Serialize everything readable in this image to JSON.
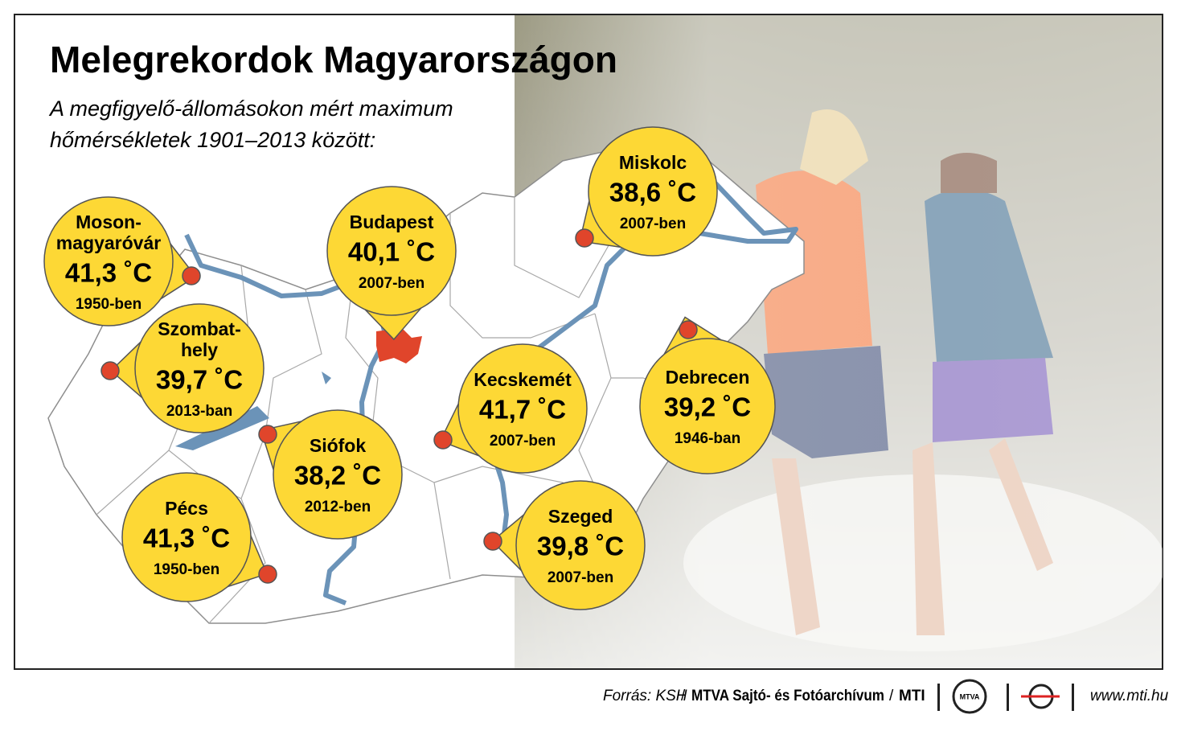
{
  "title": "Melegrekordok Magyarországon",
  "subtitle": [
    "A megfigyelő-állomásokon mért maximum",
    "hőmérsékletek 1901–2013 között:"
  ],
  "cities": [
    {
      "name": [
        "Moson-",
        "magyaróvár"
      ],
      "temperature": "41,3 ˚C",
      "year": "1950-ben"
    },
    {
      "name": [
        "Szombat-",
        "hely"
      ],
      "temperature": "39,7 ˚C",
      "year": "2013-ban"
    },
    {
      "name": [
        "Siófok"
      ],
      "temperature": "38,2 ˚C",
      "year": "2012-ben"
    },
    {
      "name": [
        "Pécs"
      ],
      "temperature": "41,3 ˚C",
      "year": "1950-ben"
    },
    {
      "name": [
        "Budapest"
      ],
      "temperature": "40,1 ˚C",
      "year": "2007-ben"
    },
    {
      "name": [
        "Kecskemét"
      ],
      "temperature": "41,7 ˚C",
      "year": "2007-ben"
    },
    {
      "name": [
        "Szeged"
      ],
      "temperature": "39,8 ˚C",
      "year": "2007-ben"
    },
    {
      "name": [
        "Miskolc"
      ],
      "temperature": "38,6 ˚C",
      "year": "2007-ben"
    },
    {
      "name": [
        "Debrecen"
      ],
      "temperature": "39,2 ˚C",
      "year": "1946-ban"
    }
  ],
  "footer": {
    "source": "Forrás: KSH",
    "separator": "/",
    "archive": "MTVA Sajtó- és Fotóarchívum",
    "agency": "MTI",
    "logo": "MTVA",
    "website": "www.mti.hu"
  }
}
